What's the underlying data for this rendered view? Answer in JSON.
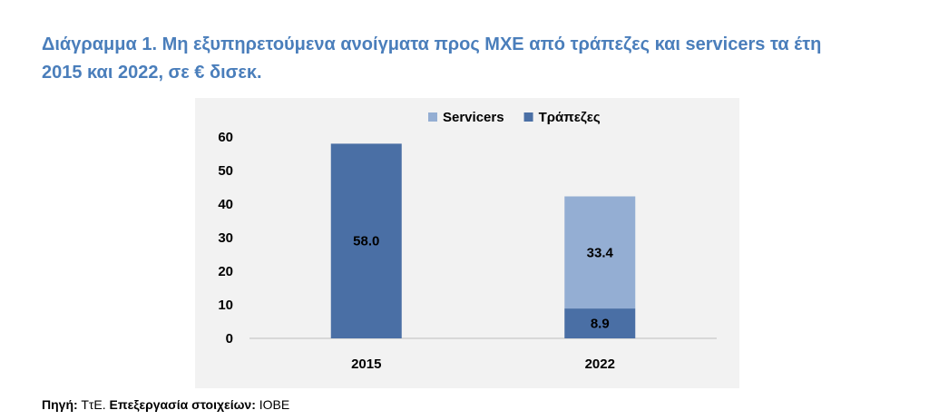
{
  "page": {
    "title_line1": "Διάγραμμα 1. Μη εξυπηρετούμενα ανοίγματα προς ΜΧΕ από τράπεζες και servicers τα έτη",
    "title_line2": "2015 και 2022, σε € δισεκ.",
    "source_label": "Πηγή:",
    "source_value": "ΤτΕ.",
    "processing_label": "Επεξεργασία στοιχείων:",
    "processing_value": "ΙΟΒΕ"
  },
  "colors": {
    "title": "#4a7ebb",
    "banks": "#4a6fa5",
    "servicers": "#94aed3",
    "plot_bg": "#f2f2f2"
  },
  "chart_data": {
    "type": "bar",
    "stacked": true,
    "categories": [
      "2015",
      "2022"
    ],
    "series": [
      {
        "name": "Τράπεζες",
        "values": [
          58.0,
          8.9
        ],
        "color": "#4a6fa5"
      },
      {
        "name": "Servicers",
        "values": [
          0,
          33.4
        ],
        "color": "#94aed3"
      }
    ],
    "data_labels": [
      {
        "category": "2015",
        "series": "Τράπεζες",
        "text": "58.0"
      },
      {
        "category": "2022",
        "series": "Τράπεζες",
        "text": "8.9"
      },
      {
        "category": "2022",
        "series": "Servicers",
        "text": "33.4"
      }
    ],
    "legend": {
      "placement": "top-right",
      "order": [
        "Servicers",
        "Τράπεζες"
      ]
    },
    "yticks": [
      "0",
      "10",
      "20",
      "30",
      "40",
      "50",
      "60"
    ],
    "ylim": [
      0,
      60
    ],
    "grid": false
  }
}
